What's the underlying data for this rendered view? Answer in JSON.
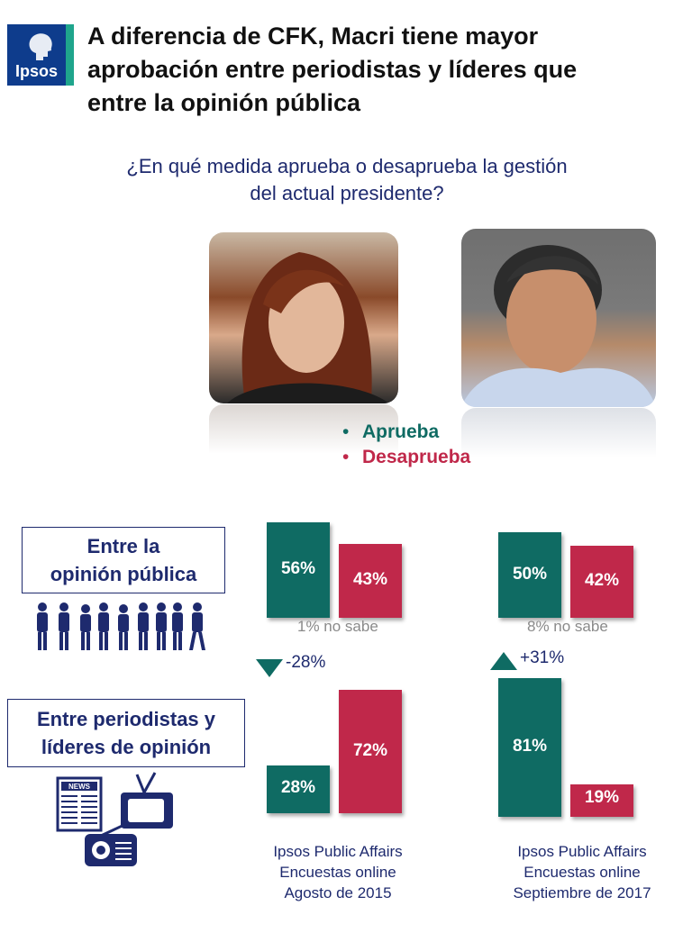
{
  "header": {
    "logo_text": "Ipsos",
    "title_lines": [
      "A diferencia de CFK, Macri tiene mayor",
      "aprobación entre periodistas y líderes que",
      "entre la opinión pública"
    ]
  },
  "question_lines": [
    "¿En qué medida aprueba o desaprueba la gestión",
    "del actual presidente?"
  ],
  "legend": [
    {
      "label": "Aprueba",
      "color": "#0f6b63"
    },
    {
      "label": "Desaprueba",
      "color": "#c0284a"
    }
  ],
  "groups": {
    "public": {
      "lines": [
        "Entre la",
        "opinión pública"
      ]
    },
    "journalists": {
      "lines": [
        "Entre periodistas y",
        "líderes de opinión"
      ]
    }
  },
  "notes": {
    "no_sabe_2015": "1% no sabe",
    "no_sabe_2017": "8% no sabe",
    "delta_2015": "-28%",
    "delta_2017": "+31%"
  },
  "sources": [
    {
      "lines": [
        "Ipsos Public Affairs",
        "Encuestas online",
        "Agosto de 2015"
      ]
    },
    {
      "lines": [
        "Ipsos Public Affairs",
        "Encuestas online",
        "Septiembre de 2017"
      ]
    }
  ],
  "chart_data": {
    "type": "bar",
    "title": "¿En qué medida aprueba o desaprueba la gestión del actual presidente?",
    "panels": [
      {
        "segment": "Entre la opinión pública",
        "period": "Agosto de 2015",
        "aprueba": 56,
        "desaprueba": 43,
        "aprueba_label": "56%",
        "desaprueba_label": "43%"
      },
      {
        "segment": "Entre la opinión pública",
        "period": "Septiembre de 2017",
        "aprueba": 50,
        "desaprueba": 42,
        "aprueba_label": "50%",
        "desaprueba_label": "42%"
      },
      {
        "segment": "Entre periodistas y líderes de opinión",
        "period": "Agosto de 2015",
        "aprueba": 28,
        "desaprueba": 72,
        "aprueba_label": "28%",
        "desaprueba_label": "72%"
      },
      {
        "segment": "Entre periodistas y líderes de opinión",
        "period": "Septiembre de 2017",
        "aprueba": 81,
        "desaprueba": 19,
        "aprueba_label": "81%",
        "desaprueba_label": "19%"
      }
    ],
    "series": [
      {
        "name": "Aprueba",
        "color": "#0f6b63"
      },
      {
        "name": "Desaprueba",
        "color": "#c0284a"
      }
    ]
  }
}
